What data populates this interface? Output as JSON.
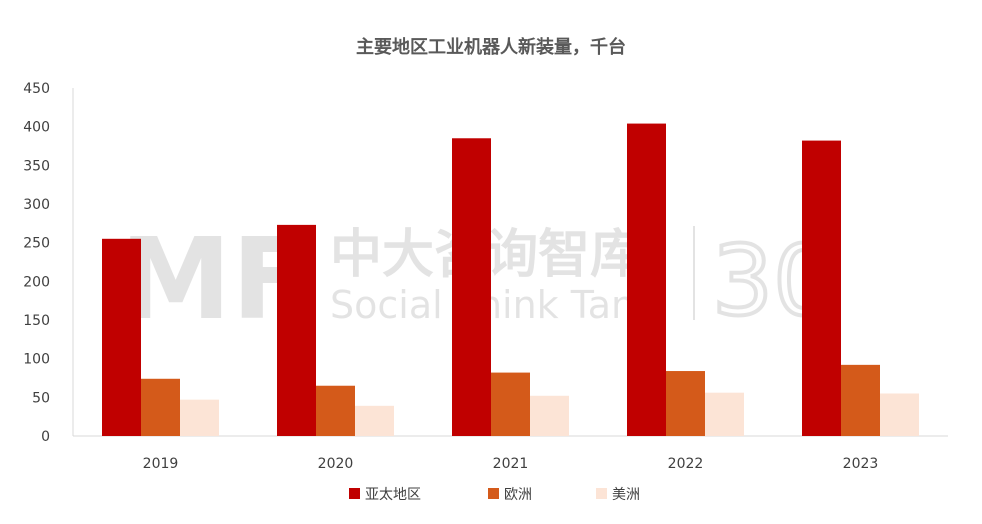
{
  "chart_data": {
    "type": "bar",
    "title": "主要地区工业机器人新装量，千台",
    "categories": [
      "2019",
      "2020",
      "2021",
      "2022",
      "2023"
    ],
    "series": [
      {
        "name": "亚太地区",
        "color": "#C00000",
        "values": [
          255,
          273,
          385,
          404,
          382
        ]
      },
      {
        "name": "欧洲",
        "color": "#D45A1A",
        "values": [
          74,
          65,
          82,
          84,
          92
        ]
      },
      {
        "name": "美洲",
        "color": "#FCE4D6",
        "values": [
          47,
          39,
          52,
          56,
          55
        ]
      }
    ],
    "ylim": [
      0,
      450
    ],
    "yticks": [
      0,
      50,
      100,
      150,
      200,
      250,
      300,
      350,
      400,
      450
    ],
    "grid": false,
    "legend_position": "bottom"
  },
  "watermark": {
    "logo_text": "MF",
    "cn_text": "中大咨询智库",
    "en_text": "Social Think Tank",
    "badge_text": "30"
  }
}
